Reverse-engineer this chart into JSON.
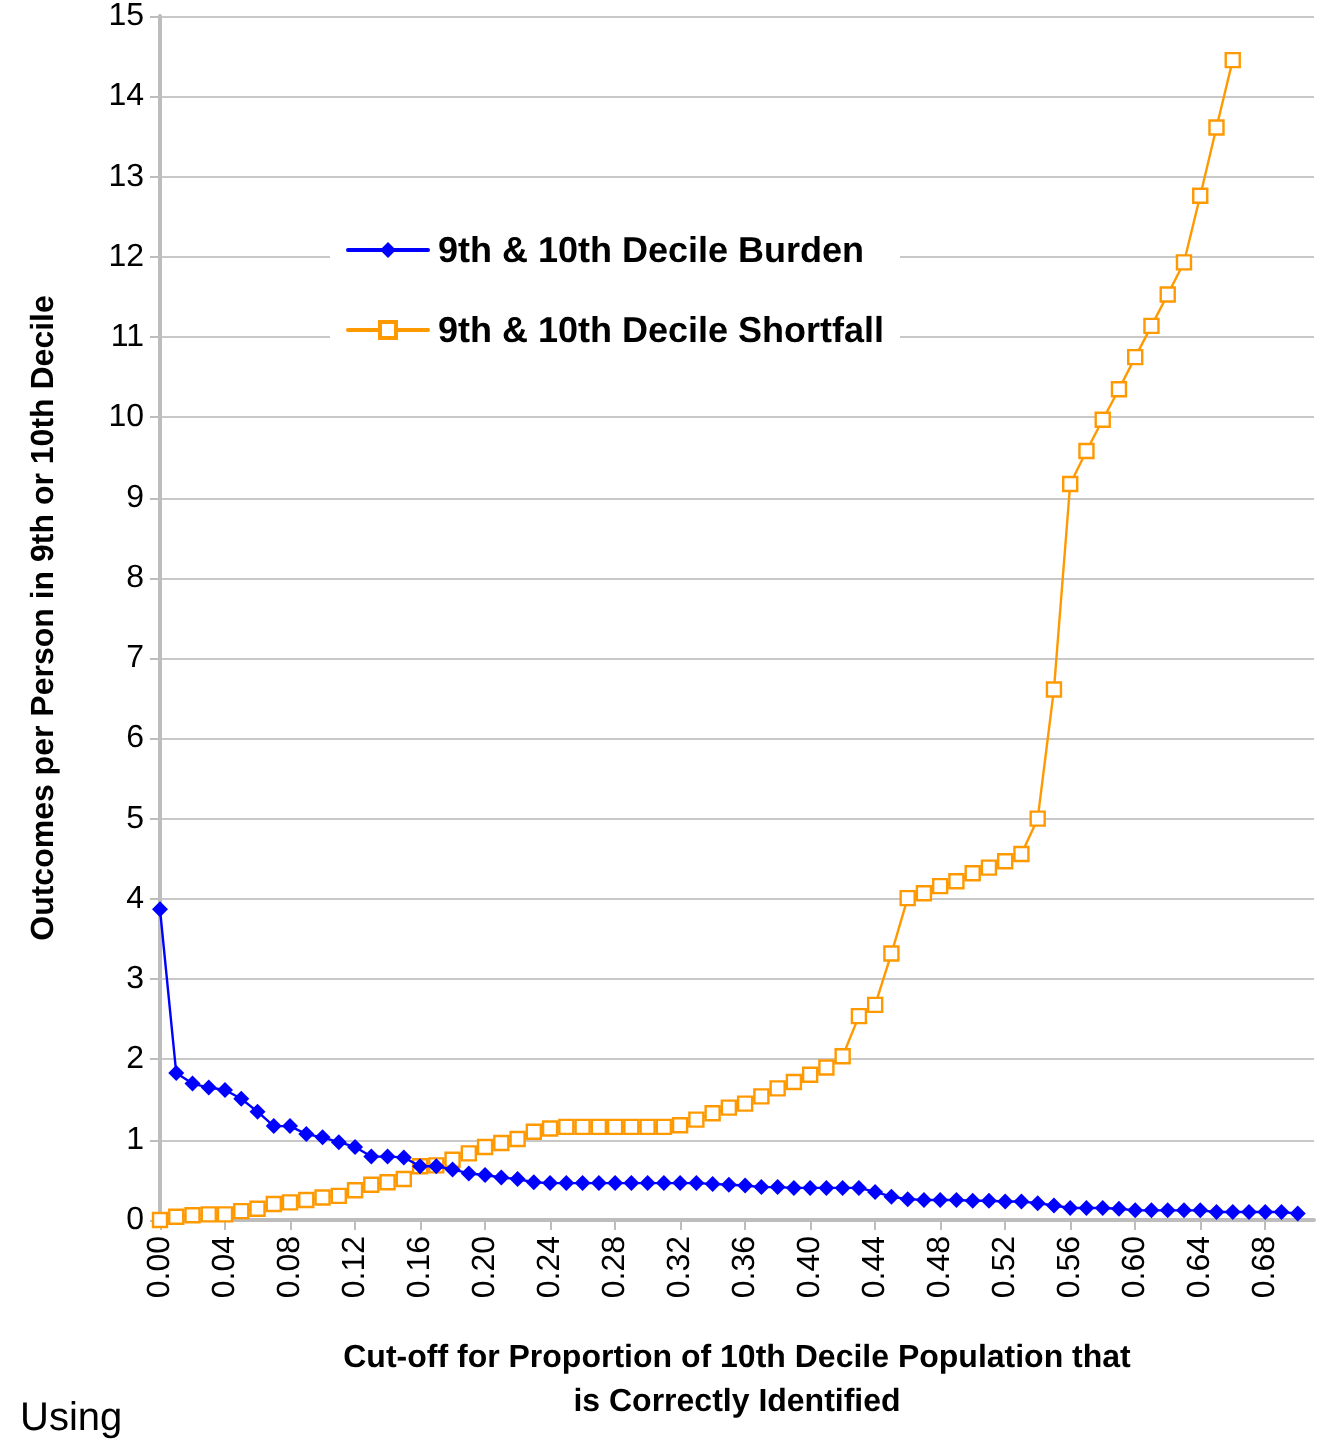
{
  "chart_data": {
    "type": "line",
    "xlabel": "Cut-off for Proportion of 10th Decile Population that\nis Correctly Identified",
    "ylabel": "Outcomes per Person in 9th or 10th Decile",
    "annotations": [
      "Using"
    ],
    "x": [
      0,
      0.01,
      0.02,
      0.03,
      0.04,
      0.05,
      0.06,
      0.07,
      0.08,
      0.09,
      0.1,
      0.11,
      0.12,
      0.13,
      0.14,
      0.15,
      0.16,
      0.17,
      0.18,
      0.19,
      0.2,
      0.21,
      0.22,
      0.23,
      0.24,
      0.25,
      0.26,
      0.27,
      0.28,
      0.29,
      0.3,
      0.31,
      0.32,
      0.33,
      0.34,
      0.35,
      0.36,
      0.37,
      0.38,
      0.39,
      0.4,
      0.41,
      0.42,
      0.43,
      0.44,
      0.45,
      0.46,
      0.47,
      0.48,
      0.49,
      0.5,
      0.51,
      0.52,
      0.53,
      0.54,
      0.55,
      0.56,
      0.57,
      0.58,
      0.59,
      0.6,
      0.61,
      0.62,
      0.63,
      0.64,
      0.65,
      0.66,
      0.67,
      0.68,
      0.69,
      0.7
    ],
    "series": [
      {
        "name": "9th & 10th Decile Burden",
        "color": "#0000ff",
        "marker": "diamond",
        "values": [
          3.87,
          1.83,
          1.7,
          1.65,
          1.62,
          1.51,
          1.35,
          1.17,
          1.17,
          1.07,
          1.03,
          0.97,
          0.91,
          0.79,
          0.79,
          0.78,
          0.67,
          0.67,
          0.63,
          0.58,
          0.56,
          0.53,
          0.51,
          0.47,
          0.46,
          0.46,
          0.46,
          0.46,
          0.46,
          0.46,
          0.46,
          0.46,
          0.46,
          0.46,
          0.45,
          0.44,
          0.43,
          0.41,
          0.41,
          0.4,
          0.4,
          0.4,
          0.4,
          0.4,
          0.35,
          0.29,
          0.26,
          0.25,
          0.25,
          0.25,
          0.24,
          0.24,
          0.23,
          0.23,
          0.21,
          0.18,
          0.15,
          0.15,
          0.15,
          0.14,
          0.12,
          0.12,
          0.12,
          0.12,
          0.12,
          0.1,
          0.1,
          0.1,
          0.1,
          0.1,
          0.08
        ]
      },
      {
        "name": "9th & 10th Decile Shortfall",
        "color": "#ff9900",
        "marker": "square",
        "values": [
          0,
          0.04,
          0.06,
          0.07,
          0.07,
          0.11,
          0.14,
          0.2,
          0.22,
          0.25,
          0.28,
          0.3,
          0.37,
          0.44,
          0.47,
          0.51,
          0.67,
          0.68,
          0.75,
          0.83,
          0.91,
          0.96,
          1.01,
          1.1,
          1.14,
          1.16,
          1.16,
          1.16,
          1.16,
          1.16,
          1.16,
          1.16,
          1.18,
          1.25,
          1.33,
          1.4,
          1.45,
          1.54,
          1.64,
          1.72,
          1.81,
          1.9,
          2.04,
          2.54,
          2.68,
          3.32,
          4.01,
          4.07,
          4.16,
          4.22,
          4.32,
          4.39,
          4.47,
          4.56,
          5.0,
          6.61,
          9.17,
          9.58,
          9.97,
          10.35,
          10.75,
          11.14,
          11.53,
          11.93,
          12.76,
          13.61,
          14.45,
          null,
          null,
          null,
          null
        ]
      }
    ],
    "xlim": [
      0,
      0.71
    ],
    "xticks": [
      {
        "value": 0,
        "label": "0.00"
      },
      {
        "value": 0.04,
        "label": "0.04"
      },
      {
        "value": 0.08,
        "label": "0.08"
      },
      {
        "value": 0.12,
        "label": "0.12"
      },
      {
        "value": 0.16,
        "label": "0.16"
      },
      {
        "value": 0.2,
        "label": "0.20"
      },
      {
        "value": 0.24,
        "label": "0.24"
      },
      {
        "value": 0.28,
        "label": "0.28"
      },
      {
        "value": 0.32,
        "label": "0.32"
      },
      {
        "value": 0.36,
        "label": "0.36"
      },
      {
        "value": 0.4,
        "label": "0.40"
      },
      {
        "value": 0.44,
        "label": "0.44"
      },
      {
        "value": 0.48,
        "label": "0.48"
      },
      {
        "value": 0.52,
        "label": "0.52"
      },
      {
        "value": 0.56,
        "label": "0.56"
      },
      {
        "value": 0.6,
        "label": "0.60"
      },
      {
        "value": 0.64,
        "label": "0.64"
      },
      {
        "value": 0.68,
        "label": "0.68"
      }
    ],
    "ylim": [
      0,
      15
    ],
    "yticks": [
      0,
      1,
      2,
      3,
      4,
      5,
      6,
      7,
      8,
      9,
      10,
      11,
      12,
      13,
      14,
      15
    ],
    "grid": "y",
    "legend": "top left",
    "line_style": "solid"
  }
}
